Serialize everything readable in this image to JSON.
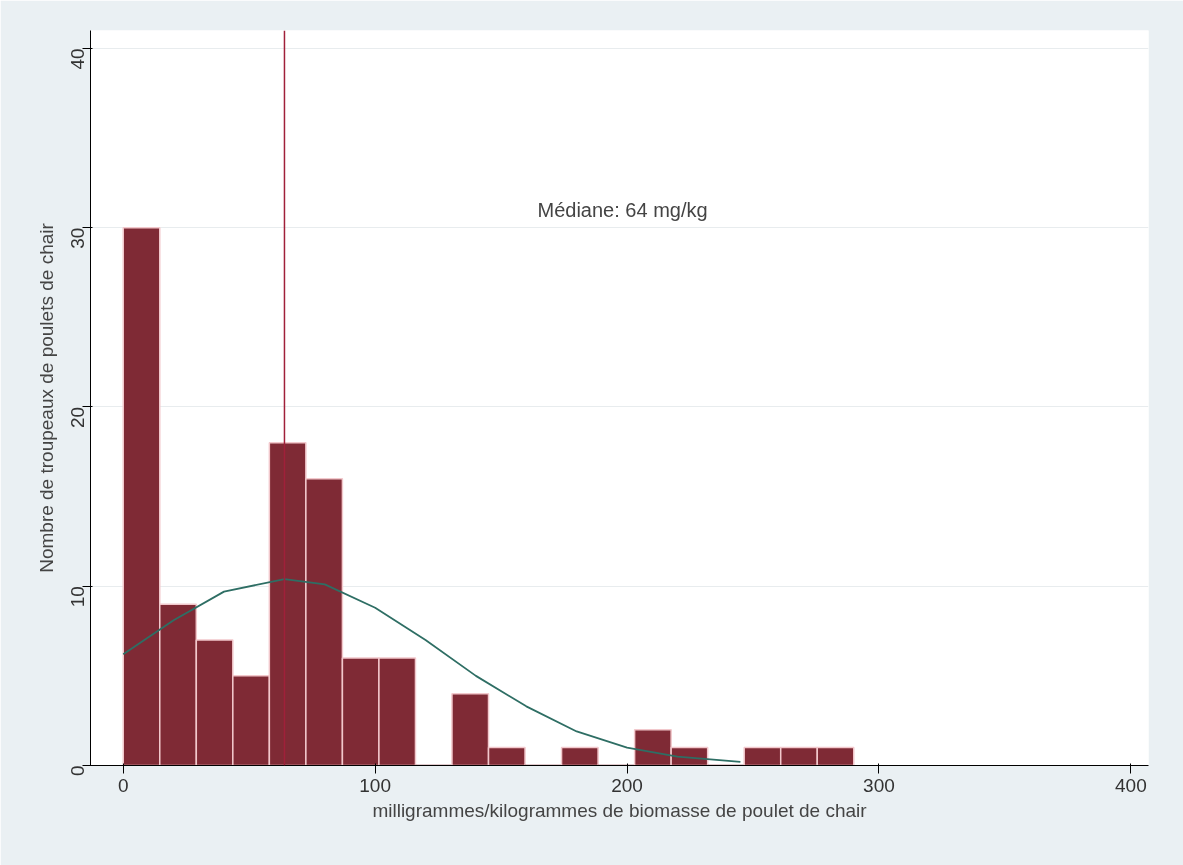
{
  "chart_data": {
    "type": "histogram",
    "xlabel": "milligrammes/kilogrammes de biomasse de poulet de chair",
    "ylabel": "Nombre de troupeaux de poulets de chair",
    "series": [
      {
        "color": "#7f2a35",
        "bins": [
          0,
          14.5,
          29,
          43.5,
          58,
          72.5,
          87,
          101.5,
          116,
          130.5,
          145,
          159.5,
          174,
          188.5,
          203,
          217.5,
          232,
          246.5,
          261,
          275.5,
          290
        ],
        "values": [
          30,
          9,
          7,
          5,
          18,
          16,
          6,
          6,
          0,
          4,
          1,
          0,
          1,
          0,
          2,
          1,
          0,
          1,
          1,
          1
        ]
      },
      {
        "type": "line",
        "color": "#2e6e64",
        "x": [
          0,
          20,
          40,
          64,
          80,
          100,
          120,
          140,
          160,
          180,
          200,
          220,
          245
        ],
        "values": [
          6.2,
          8.1,
          9.7,
          10.4,
          10.1,
          8.8,
          7.0,
          5.0,
          3.3,
          1.9,
          1.0,
          0.5,
          0.2
        ]
      }
    ],
    "ref_lines": [
      {
        "axis": "x",
        "value": 64,
        "label": null,
        "color": "#a0203a"
      }
    ],
    "annotations": [
      "Médiane: 64 mg/kg"
    ],
    "xlim": [
      -13,
      407
    ],
    "ylim": [
      0,
      41
    ],
    "xticks": [
      0,
      100,
      200,
      300,
      400
    ],
    "yticks": [
      0,
      10,
      20,
      30,
      40
    ],
    "grid": "y"
  }
}
